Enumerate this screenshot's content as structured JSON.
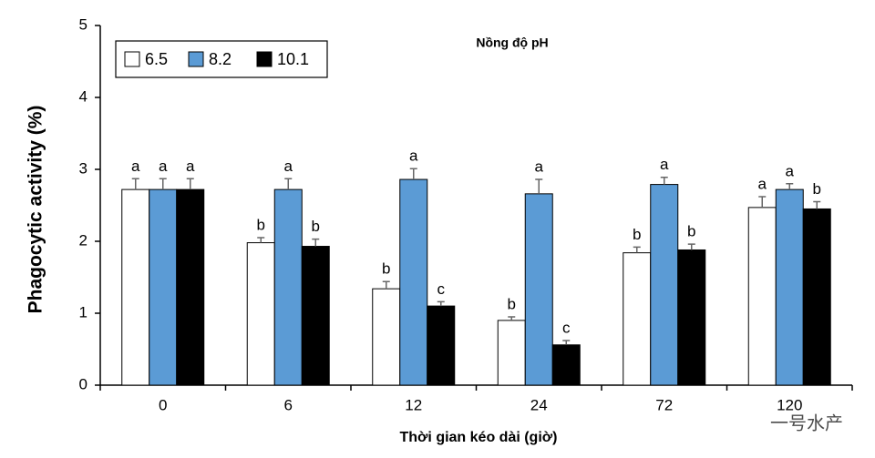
{
  "chart_data": {
    "type": "bar",
    "title": "Nồng độ pH",
    "x_label": "Thời gian kéo dài (giờ)",
    "y_label": "Phagocytic activity (%)",
    "categories": [
      "0",
      "6",
      "12",
      "24",
      "72",
      "120"
    ],
    "series": [
      {
        "name": "6.5",
        "color": "#ffffff",
        "values": [
          2.72,
          1.98,
          1.34,
          0.9,
          1.84,
          2.47
        ],
        "errors": [
          0.15,
          0.07,
          0.1,
          0.05,
          0.08,
          0.15
        ],
        "letters": [
          "a",
          "b",
          "b",
          "b",
          "b",
          "a"
        ]
      },
      {
        "name": "8.2",
        "color": "#5b9bd5",
        "values": [
          2.72,
          2.72,
          2.86,
          2.66,
          2.79,
          2.72
        ],
        "errors": [
          0.15,
          0.15,
          0.15,
          0.2,
          0.1,
          0.08
        ],
        "letters": [
          "a",
          "a",
          "a",
          "a",
          "a",
          "a"
        ]
      },
      {
        "name": "10.1",
        "color": "#000000",
        "values": [
          2.72,
          1.93,
          1.1,
          0.56,
          1.88,
          2.45
        ],
        "errors": [
          0.15,
          0.1,
          0.06,
          0.06,
          0.08,
          0.1
        ],
        "letters": [
          "a",
          "b",
          "c",
          "c",
          "b",
          "b"
        ]
      }
    ],
    "ylim": [
      0,
      5
    ],
    "yticks": [
      0,
      1,
      2,
      3,
      4,
      5
    ],
    "legend": "top-left",
    "watermark": "一号水产"
  }
}
